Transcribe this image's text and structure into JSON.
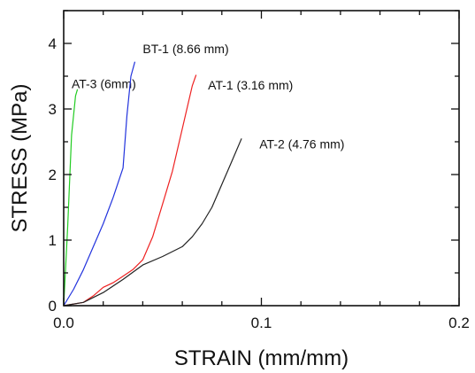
{
  "chart_data": {
    "type": "line",
    "title": "",
    "xlabel": "STRAIN (mm/mm)",
    "ylabel": "STRESS (MPa)",
    "xlim": [
      0,
      0.2
    ],
    "ylim": [
      0,
      4.5
    ],
    "xticks": [
      0,
      0.1,
      0.2
    ],
    "xtick_labels": [
      "0.0",
      "0.1",
      "0.2"
    ],
    "yticks": [
      0,
      1,
      2,
      3,
      4
    ],
    "ytick_labels": [
      "0",
      "1",
      "2",
      "3",
      "4"
    ],
    "grid": false,
    "legend": "none",
    "series": [
      {
        "name": "AT-3 (6mm)",
        "color": "#22cc22",
        "label_at": [
          0.004,
          3.32
        ],
        "x": [
          0,
          0.002,
          0.004,
          0.006,
          0.007
        ],
        "y": [
          0,
          1.2,
          2.6,
          3.2,
          3.3
        ]
      },
      {
        "name": "BT-1 (8.66 mm)",
        "color": "#2233dd",
        "label_at": [
          0.04,
          3.85
        ],
        "x": [
          0,
          0.005,
          0.01,
          0.015,
          0.02,
          0.025,
          0.03,
          0.032,
          0.034,
          0.036
        ],
        "y": [
          0,
          0.25,
          0.55,
          0.9,
          1.25,
          1.65,
          2.1,
          2.9,
          3.5,
          3.72
        ]
      },
      {
        "name": "AT-1 (3.16 mm)",
        "color": "#ee2222",
        "label_at": [
          0.073,
          3.3
        ],
        "x": [
          0,
          0.01,
          0.015,
          0.02,
          0.025,
          0.03,
          0.035,
          0.04,
          0.045,
          0.05,
          0.055,
          0.06,
          0.065,
          0.067
        ],
        "y": [
          0,
          0.05,
          0.15,
          0.28,
          0.35,
          0.45,
          0.55,
          0.7,
          1.05,
          1.55,
          2.05,
          2.7,
          3.35,
          3.52
        ]
      },
      {
        "name": "AT-2 (4.76 mm)",
        "color": "#222222",
        "label_at": [
          0.099,
          2.4
        ],
        "x": [
          0,
          0.01,
          0.02,
          0.03,
          0.04,
          0.05,
          0.06,
          0.065,
          0.07,
          0.075,
          0.08,
          0.085,
          0.09
        ],
        "y": [
          0,
          0.05,
          0.2,
          0.4,
          0.62,
          0.75,
          0.9,
          1.05,
          1.25,
          1.5,
          1.85,
          2.2,
          2.55
        ]
      }
    ]
  }
}
